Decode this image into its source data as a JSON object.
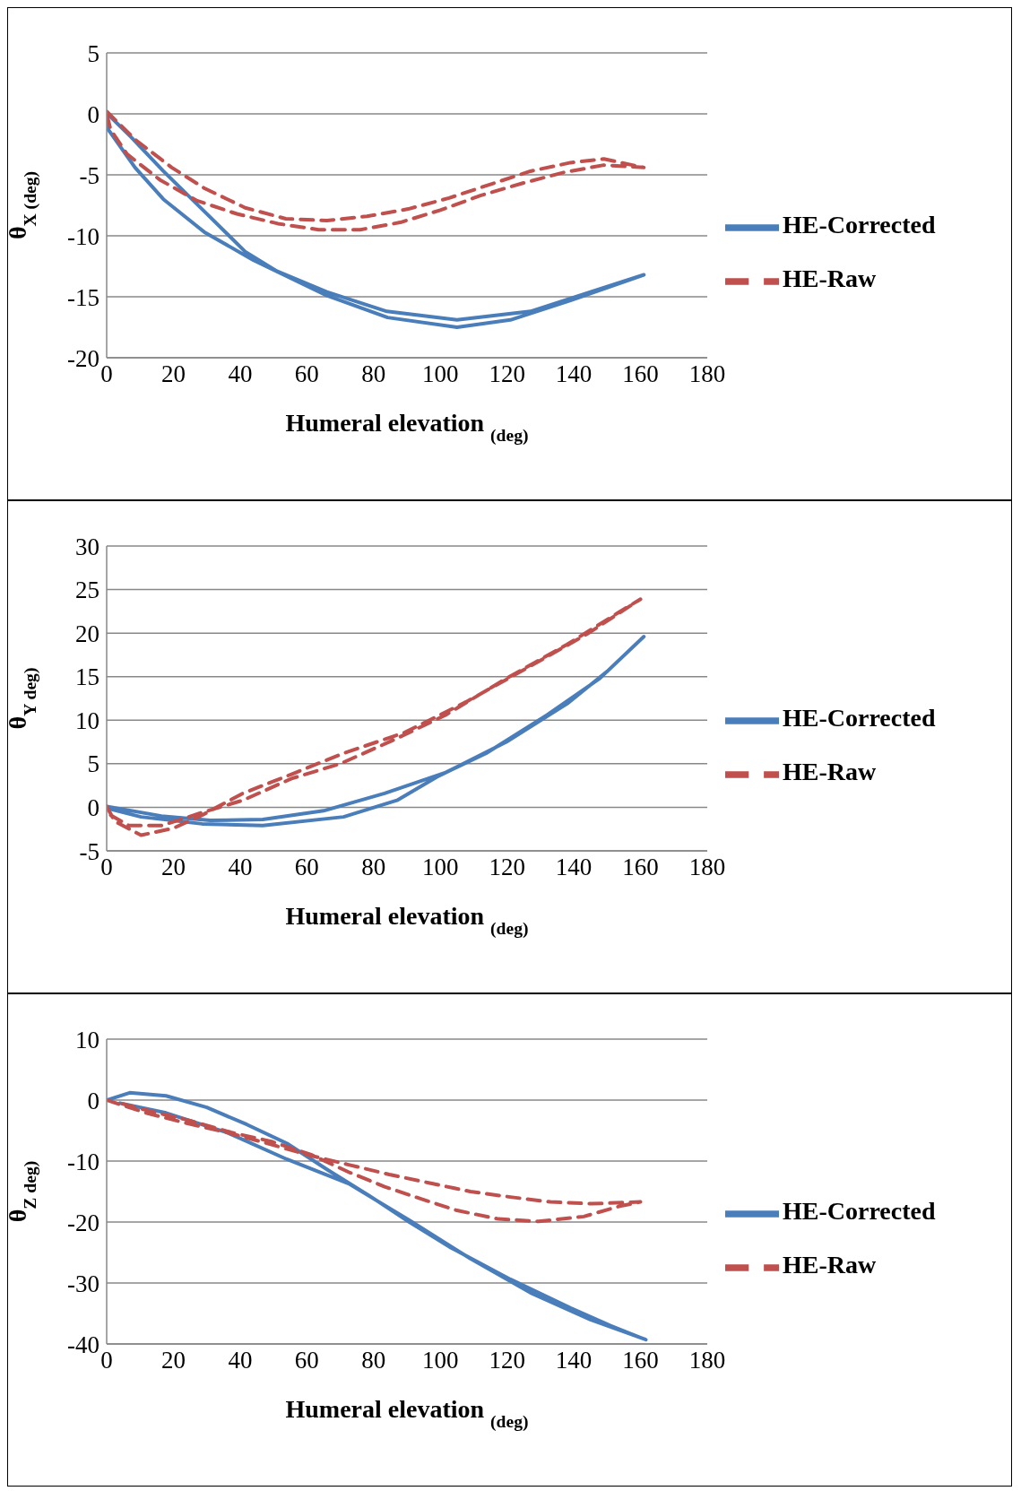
{
  "chart_data": [
    {
      "type": "line",
      "ylabel": "θ$_{X (deg)}$",
      "xlabel": "Humeral elevation $_{(deg)}$",
      "xlim": [
        0,
        180
      ],
      "xticks": [
        0,
        20,
        40,
        60,
        80,
        100,
        120,
        140,
        160,
        180
      ],
      "ylim": [
        -20,
        5
      ],
      "yticks": [
        -20,
        -15,
        -10,
        -5,
        0,
        5
      ],
      "grid": "y",
      "legend": "right",
      "series": [
        {
          "name": "HE-Corrected",
          "color": "#4a7ebb",
          "line_style": "solid",
          "x": [
            0,
            0,
            8.5,
            17,
            29.3,
            44,
            66,
            84.2,
            105,
            121,
            139,
            161,
            145,
            127,
            105,
            84,
            66,
            51,
            41.5,
            29.3,
            17,
            7.3,
            1
          ],
          "values": [
            0,
            -1.1,
            -4.4,
            -7,
            -9.7,
            -12,
            -14.9,
            -16.7,
            -17.5,
            -16.9,
            -15.3,
            -13.2,
            -14.6,
            -16.2,
            -16.9,
            -16.2,
            -14.6,
            -12.9,
            -11.3,
            -8,
            -4.7,
            -1.9,
            -0.2
          ]
        },
        {
          "name": "HE-Raw",
          "color": "#c0504d",
          "line_style": "dashed",
          "x": [
            0,
            8.5,
            19.5,
            29.3,
            41.5,
            53.7,
            66,
            78,
            90.4,
            102.6,
            114.8,
            127,
            139,
            149,
            161,
            149,
            137,
            124.5,
            112,
            100,
            88,
            76,
            63.5,
            51.3,
            39,
            26.9,
            15.9,
            6.1,
            1.2,
            0
          ],
          "values": [
            0.2,
            -2.1,
            -4.4,
            -6.1,
            -7.7,
            -8.6,
            -8.75,
            -8.4,
            -7.8,
            -6.9,
            -5.8,
            -4.7,
            -4,
            -3.7,
            -4.4,
            -4.2,
            -4.8,
            -5.7,
            -6.7,
            -7.9,
            -8.9,
            -9.5,
            -9.5,
            -9,
            -8.2,
            -7.1,
            -5.4,
            -3.3,
            -1.3,
            0
          ]
        }
      ]
    },
    {
      "type": "line",
      "ylabel": "θ$_{Y deg)}$",
      "xlabel": "Humeral elevation $_{(deg)}$",
      "xlim": [
        0,
        180
      ],
      "xticks": [
        0,
        20,
        40,
        60,
        80,
        100,
        120,
        140,
        160,
        180
      ],
      "ylim": [
        -5,
        30
      ],
      "yticks": [
        -5,
        0,
        5,
        10,
        15,
        20,
        25,
        30
      ],
      "grid": "y",
      "legend": "right",
      "series": [
        {
          "name": "HE-Corrected",
          "color": "#4a7ebb",
          "line_style": "solid",
          "x": [
            0,
            16.4,
            31,
            46.8,
            65,
            83.3,
            101.6,
            119.8,
            138,
            150,
            161,
            147.8,
            132,
            113.7,
            99,
            87,
            71,
            46.8,
            28.6,
            10.3,
            1
          ],
          "values": [
            0.1,
            -1,
            -1.5,
            -1.4,
            -0.4,
            1.6,
            4,
            7.5,
            11.9,
            15.6,
            19.6,
            14.8,
            10.6,
            6.2,
            3.5,
            0.8,
            -1.1,
            -2.1,
            -1.9,
            -1.1,
            -0.2
          ]
        },
        {
          "name": "HE-Raw",
          "color": "#c0504d",
          "line_style": "dashed",
          "x": [
            0,
            2.4,
            10.3,
            20,
            28.6,
            40.8,
            55.4,
            71,
            89.4,
            107.7,
            126,
            144,
            160,
            152.7,
            138,
            119.8,
            101.6,
            85.8,
            70,
            55.4,
            40.8,
            28.6,
            16.4,
            6.7,
            1.2
          ],
          "values": [
            0.1,
            -1.6,
            -3.2,
            -2.4,
            -0.9,
            1.6,
            3.8,
            6.2,
            8.6,
            12.1,
            16,
            19.9,
            23.9,
            22.2,
            18.7,
            14.8,
            10.6,
            7.7,
            5,
            3.3,
            0.8,
            -0.6,
            -2.1,
            -2.1,
            -0.9
          ]
        }
      ]
    },
    {
      "type": "line",
      "ylabel": "θ$_{Z deg)}$",
      "xlabel": "Humeral elevation $_{(deg)}$",
      "xlim": [
        0,
        180
      ],
      "xticks": [
        0,
        20,
        40,
        60,
        80,
        100,
        120,
        140,
        160,
        180
      ],
      "ylim": [
        -40,
        10
      ],
      "yticks": [
        -40,
        -30,
        -20,
        -10,
        0,
        10
      ],
      "grid": "y",
      "legend": "right",
      "series": [
        {
          "name": "HE-Corrected",
          "color": "#4a7ebb",
          "line_style": "solid",
          "x": [
            0,
            6.9,
            17.8,
            30,
            42,
            54,
            66.4,
            78.5,
            90.7,
            102.8,
            121,
            139,
            151,
            161.6,
            145,
            127,
            109,
            90.7,
            72.5,
            54,
            36,
            17.8,
            4
          ],
          "values": [
            0,
            1.2,
            0.7,
            -1.2,
            -4,
            -7.1,
            -11.5,
            -15.6,
            -20,
            -24.1,
            -29.4,
            -34.1,
            -37,
            -39.3,
            -36,
            -31.6,
            -26,
            -19.7,
            -13.7,
            -9.7,
            -5.3,
            -2.1,
            -0.5
          ]
        },
        {
          "name": "HE-Raw",
          "color": "#c0504d",
          "line_style": "dashed",
          "x": [
            0,
            11.8,
            24,
            36,
            48.2,
            60.4,
            72.5,
            84.7,
            96.8,
            109,
            121,
            133,
            145.3,
            160,
            153.8,
            143,
            129.5,
            117.4,
            105,
            94.2,
            83.3,
            72.5,
            61.5,
            49.4,
            37.3,
            25.2,
            13,
            4
          ],
          "values": [
            0,
            -2.1,
            -3.8,
            -5.3,
            -7.1,
            -9,
            -10.6,
            -12.2,
            -13.6,
            -15,
            -15.9,
            -16.7,
            -17,
            -16.7,
            -17.4,
            -19.1,
            -19.9,
            -19.5,
            -18.1,
            -16.2,
            -14.2,
            -11.8,
            -9,
            -6.8,
            -5.3,
            -3.4,
            -1.8,
            -0.5
          ]
        }
      ]
    }
  ]
}
